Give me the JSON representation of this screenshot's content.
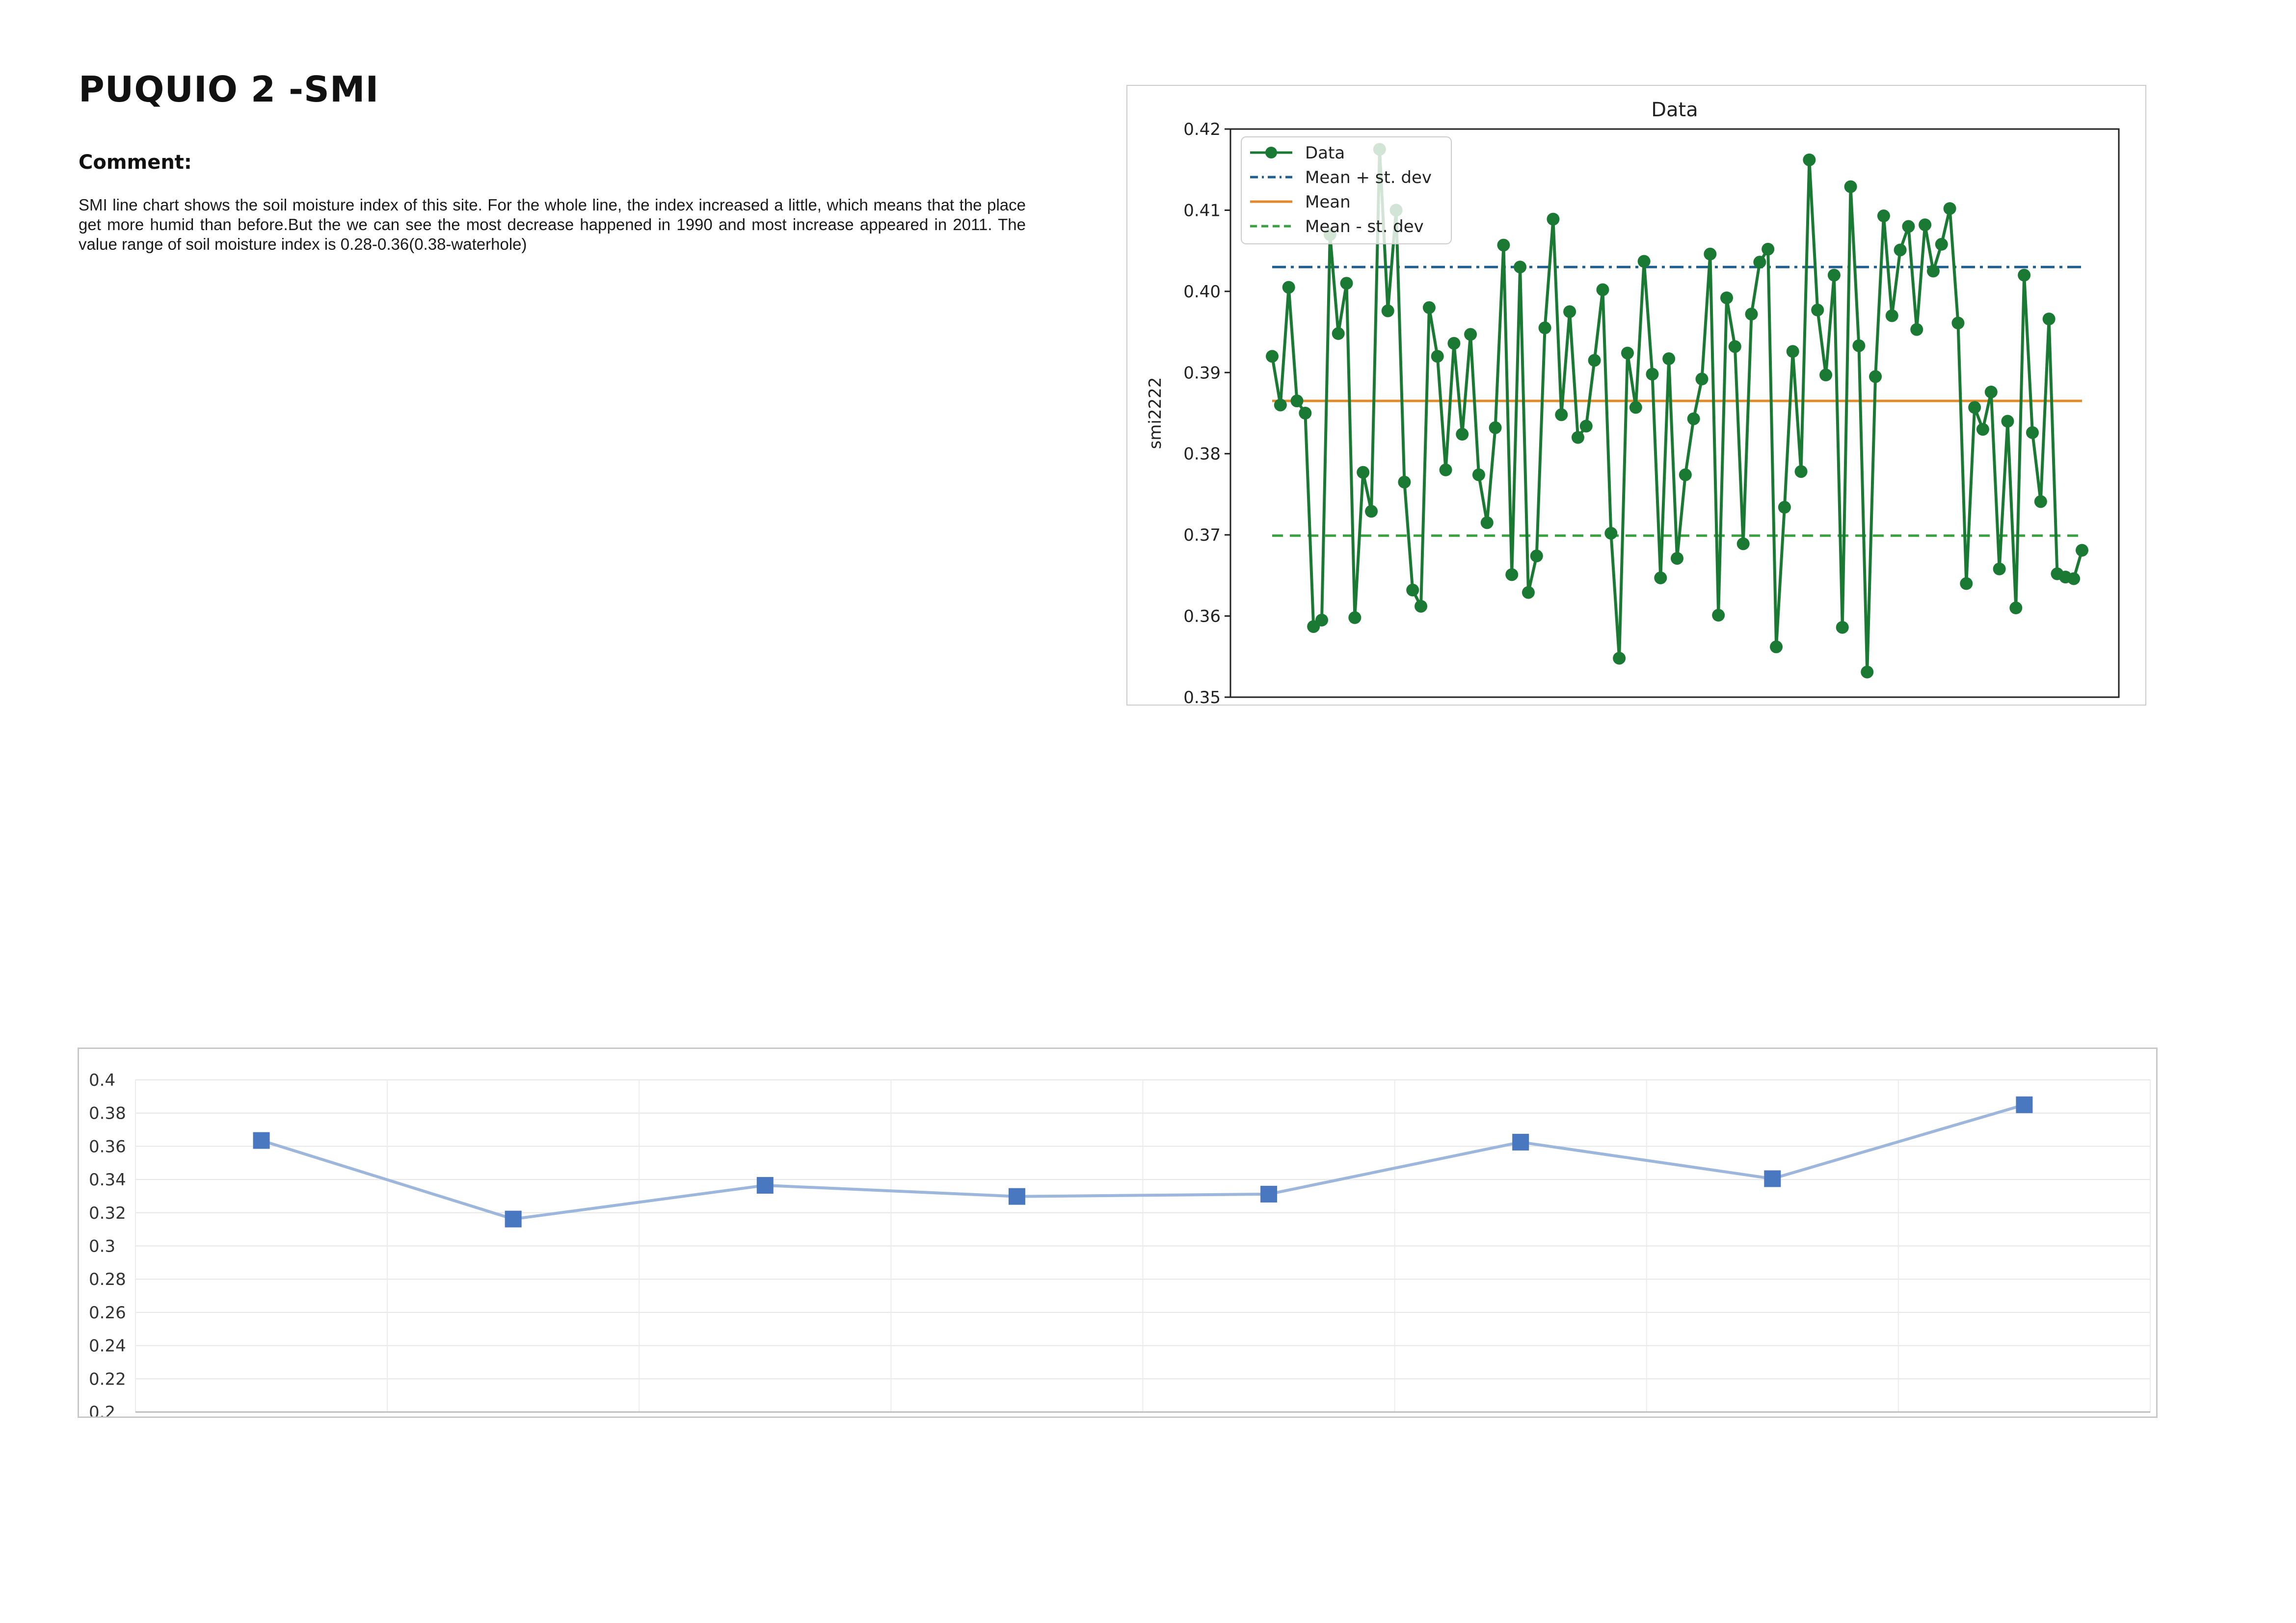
{
  "page": {
    "title": "PUQUIO 2 -SMI",
    "comment_heading": "Comment:",
    "comment_text": "SMI line chart shows the soil moisture index of this site. For the whole line, the index increased a little, which means that the place get more humid than before.But the we can see the most decrease happened in 1990 and most increase appeared in 2011. The value range of soil moisture index is 0.28-0.36(0.38-waterhole)"
  },
  "colors": {
    "data_line": "#1a7a33",
    "mean_plus": "#1f5f8f",
    "mean": "#e08a2c",
    "mean_minus": "#3aa040",
    "annual_line": "#9cb6dc",
    "annual_marker": "#4a78c0"
  },
  "chart_data": [
    {
      "type": "line",
      "title": "Data",
      "xlabel": "",
      "ylabel": "smi2222",
      "ylim": [
        0.35,
        0.42
      ],
      "yticks": [
        "0.42",
        "0.41",
        "0.40",
        "0.39",
        "0.38",
        "0.37",
        "0.36",
        "0.35"
      ],
      "ytick_values": [
        0.42,
        0.41,
        0.4,
        0.39,
        0.38,
        0.37,
        0.36,
        0.35
      ],
      "legend_position": "top-left",
      "legend": [
        "Data",
        "Mean + st. dev",
        "Mean",
        "Mean - st. dev"
      ],
      "series": [
        {
          "name": "Data",
          "values": [
            0.392,
            0.386,
            0.4005,
            0.3865,
            0.385,
            0.3587,
            0.3595,
            0.407,
            0.3948,
            0.401,
            0.3598,
            0.3777,
            0.3729,
            0.4175,
            0.3976,
            0.41,
            0.3765,
            0.3632,
            0.3612,
            0.398,
            0.392,
            0.378,
            0.3936,
            0.3824,
            0.3947,
            0.3774,
            0.3715,
            0.3832,
            0.4057,
            0.3651,
            0.403,
            0.3629,
            0.3674,
            0.3955,
            0.4089,
            0.3848,
            0.3975,
            0.382,
            0.3834,
            0.3915,
            0.4002,
            0.3702,
            0.3548,
            0.3924,
            0.3857,
            0.4037,
            0.3898,
            0.3647,
            0.3917,
            0.3671,
            0.3774,
            0.3843,
            0.3892,
            0.4046,
            0.3601,
            0.3992,
            0.3932,
            0.3689,
            0.3972,
            0.4036,
            0.4052,
            0.3562,
            0.3734,
            0.3926,
            0.3778,
            0.4162,
            0.3977,
            0.3897,
            0.402,
            0.3586,
            0.4129,
            0.3933,
            0.3531,
            0.3895,
            0.4093,
            0.397,
            0.4051,
            0.408,
            0.3953,
            0.4082,
            0.4025,
            0.4058,
            0.4102,
            0.3961,
            0.364,
            0.3857,
            0.383,
            0.3876,
            0.3658,
            0.384,
            0.361,
            0.402,
            0.3826,
            0.3741,
            0.3966,
            0.3652,
            0.3648,
            0.3646,
            0.3681
          ]
        },
        {
          "name": "Mean + st. dev",
          "value": 0.403
        },
        {
          "name": "Mean",
          "value": 0.3865
        },
        {
          "name": "Mean - st. dev",
          "value": 0.3699
        }
      ]
    },
    {
      "type": "line",
      "title": "",
      "xlabel": "",
      "ylabel": "",
      "ylim": [
        0.2,
        0.4
      ],
      "yticks": [
        "0.4",
        "0.38",
        "0.36",
        "0.34",
        "0.32",
        "0.3",
        "0.28",
        "0.26",
        "0.24",
        "0.22",
        "0.2"
      ],
      "ytick_values": [
        0.4,
        0.38,
        0.36,
        0.34,
        0.32,
        0.3,
        0.28,
        0.26,
        0.24,
        0.22,
        0.2
      ],
      "grid": true,
      "series": [
        {
          "values": [
            0.3635,
            0.3162,
            0.3365,
            0.3298,
            0.3312,
            0.3625,
            0.3405,
            0.385
          ]
        }
      ]
    }
  ]
}
